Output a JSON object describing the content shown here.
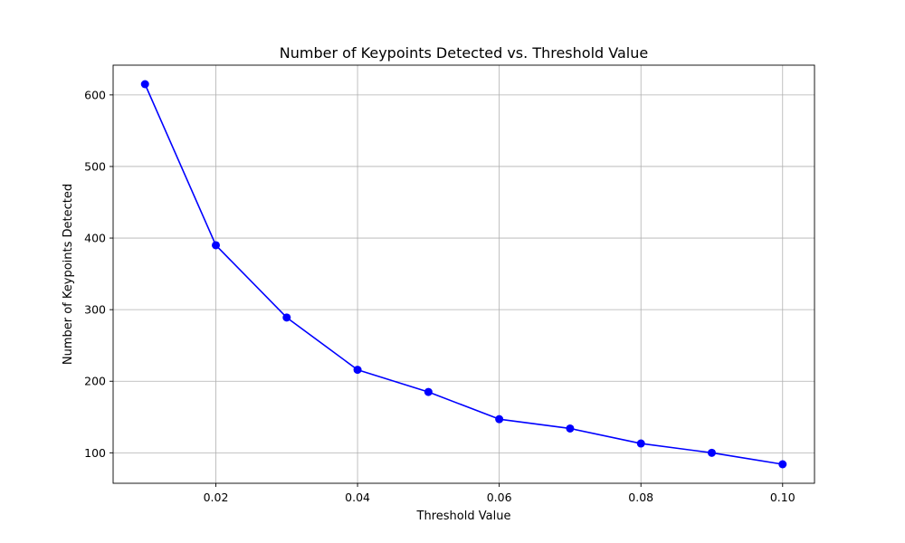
{
  "chart_data": {
    "type": "line",
    "title": "Number of Keypoints Detected vs. Threshold Value",
    "xlabel": "Threshold Value",
    "ylabel": "Number of Keypoints Detected",
    "x": [
      0.01,
      0.02,
      0.03,
      0.04,
      0.05,
      0.06,
      0.07,
      0.08,
      0.09,
      0.1
    ],
    "series": [
      {
        "values": [
          615,
          390,
          289,
          216,
          185,
          147,
          134,
          113,
          100,
          84
        ],
        "color": "#0000ff",
        "marker": "circle"
      }
    ],
    "xlim": [
      0.0055,
      0.1045
    ],
    "ylim": [
      57.45,
      641.55
    ],
    "xticks": [
      0.02,
      0.04,
      0.06,
      0.08,
      0.1
    ],
    "xtick_labels": [
      "0.02",
      "0.04",
      "0.06",
      "0.08",
      "0.10"
    ],
    "yticks": [
      100,
      200,
      300,
      400,
      500,
      600
    ],
    "ytick_labels": [
      "100",
      "200",
      "300",
      "400",
      "500",
      "600"
    ],
    "grid": true,
    "legend": "none"
  }
}
